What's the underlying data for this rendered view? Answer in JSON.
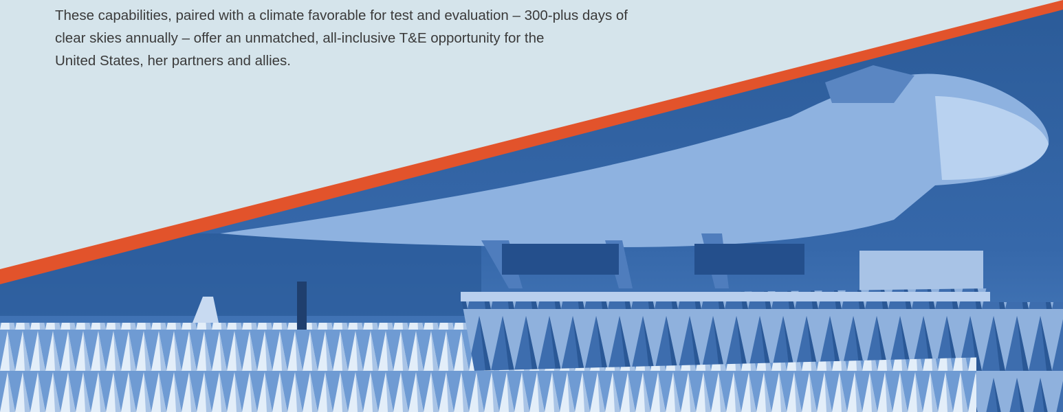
{
  "paragraph": {
    "lines": [
      "These capabilities, paired with a climate favorable for test and evaluation – 300-plus days of",
      "clear skies annually – offer an unmatched, all-inclusive T&E opportunity for the",
      "United States, her partners and allies."
    ]
  }
}
